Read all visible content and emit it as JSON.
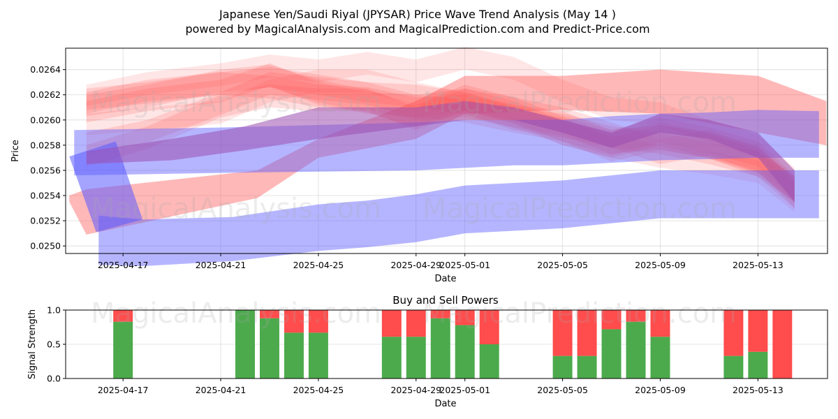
{
  "header": {
    "title_line1": "Japanese Yen/Saudi Riyal (JPYSAR) Price Wave Trend Analysis (May 14 )",
    "title_line2": "powered by MagicalAnalysis.com and MagicalPrediction.com and Predict-Price.com"
  },
  "watermarks": [
    "MagicalAnalysis.com",
    "MagicalPrediction.com"
  ],
  "colors": {
    "red_band": "#ff4d4d",
    "blue_band": "#5a5aff",
    "buy_bar": "#4caa4c",
    "sell_bar": "#ff4c4c"
  },
  "chart_data": [
    {
      "type": "area",
      "title": "",
      "xlabel": "Date",
      "ylabel": "Price",
      "ylim": [
        0.02494,
        0.02657
      ],
      "xlim_days": [
        -2.35,
        28.85
      ],
      "x_origin_date": "2025-04-17",
      "yticks": [
        0.025,
        0.0252,
        0.0254,
        0.0256,
        0.0258,
        0.026,
        0.0262,
        0.0264
      ],
      "ytick_labels": [
        "0.0250",
        "0.0252",
        "0.0254",
        "0.0256",
        "0.0258",
        "0.0260",
        "0.0262",
        "0.0264"
      ],
      "xticks_days": [
        0,
        4,
        8,
        12,
        14,
        18,
        22,
        26
      ],
      "xtick_labels": [
        "2025-04-17",
        "2025-04-21",
        "2025-04-25",
        "2025-04-29",
        "2025-05-01",
        "2025-05-05",
        "2025-05-09",
        "2025-05-13"
      ],
      "grid": true,
      "series": [
        {
          "name": "red-wave-long",
          "color": "red",
          "opacity": 0.4,
          "x": [
            -2.2,
            -1.5,
            5.5,
            8,
            12,
            14,
            18,
            22,
            26,
            28.8
          ],
          "upper": [
            0.0254,
            0.02545,
            0.0256,
            0.02585,
            0.02615,
            0.02635,
            0.02635,
            0.0264,
            0.02635,
            0.02615
          ],
          "lower": [
            0.02535,
            0.02509,
            0.02538,
            0.0257,
            0.02585,
            0.02605,
            0.02608,
            0.02605,
            0.0259,
            0.0258
          ]
        },
        {
          "name": "red-wave-1",
          "color": "red",
          "opacity": 0.18,
          "x": [
            -1.5,
            1,
            4,
            6,
            8,
            10,
            12,
            14,
            16,
            18,
            20,
            22,
            24,
            26,
            27.5
          ],
          "upper": [
            0.02625,
            0.0263,
            0.02638,
            0.02642,
            0.02636,
            0.0263,
            0.02628,
            0.02622,
            0.0261,
            0.02605,
            0.02595,
            0.0259,
            0.02582,
            0.02575,
            0.02555
          ],
          "lower": [
            0.02608,
            0.02613,
            0.0262,
            0.02626,
            0.0262,
            0.02614,
            0.0261,
            0.02605,
            0.02592,
            0.02586,
            0.02578,
            0.02573,
            0.02565,
            0.02555,
            0.02535
          ]
        },
        {
          "name": "red-wave-2",
          "color": "red",
          "opacity": 0.18,
          "x": [
            -1.5,
            1,
            4,
            6,
            8,
            10,
            12,
            14,
            16,
            18,
            20,
            22,
            24,
            26,
            27.5
          ],
          "upper": [
            0.02615,
            0.02625,
            0.02632,
            0.02645,
            0.0263,
            0.02622,
            0.0262,
            0.02625,
            0.02615,
            0.026,
            0.0259,
            0.02598,
            0.0259,
            0.0258,
            0.02552
          ],
          "lower": [
            0.02598,
            0.02607,
            0.02614,
            0.02627,
            0.02612,
            0.02605,
            0.02602,
            0.02607,
            0.02597,
            0.0258,
            0.0257,
            0.0258,
            0.0257,
            0.0256,
            0.0253
          ]
        },
        {
          "name": "red-wave-3",
          "color": "red",
          "opacity": 0.18,
          "x": [
            -1.5,
            1,
            4,
            6,
            8,
            10,
            12,
            14,
            16,
            18,
            20,
            22,
            24,
            26,
            27.5
          ],
          "upper": [
            0.0262,
            0.02628,
            0.0264,
            0.02644,
            0.02632,
            0.02624,
            0.02612,
            0.02628,
            0.02618,
            0.02603,
            0.02592,
            0.02602,
            0.02594,
            0.02583,
            0.02556
          ],
          "lower": [
            0.02603,
            0.0261,
            0.02622,
            0.02626,
            0.02614,
            0.02606,
            0.02594,
            0.02608,
            0.02598,
            0.02583,
            0.02572,
            0.02582,
            0.02574,
            0.02563,
            0.02536
          ]
        },
        {
          "name": "red-wave-4",
          "color": "red",
          "opacity": 0.18,
          "x": [
            -1.5,
            1,
            4,
            6,
            8,
            10,
            12,
            14,
            16,
            18,
            20,
            22,
            24,
            26,
            27.5
          ],
          "upper": [
            0.02622,
            0.02632,
            0.02638,
            0.02635,
            0.02628,
            0.02626,
            0.02618,
            0.0262,
            0.02612,
            0.02607,
            0.02592,
            0.02596,
            0.02588,
            0.02578,
            0.02554
          ],
          "lower": [
            0.02605,
            0.02615,
            0.0262,
            0.02617,
            0.0261,
            0.02608,
            0.026,
            0.02602,
            0.02594,
            0.02588,
            0.02573,
            0.02577,
            0.02569,
            0.02558,
            0.02534
          ]
        },
        {
          "name": "red-wave-5",
          "color": "red",
          "opacity": 0.14,
          "x": [
            -1.5,
            1,
            4,
            6,
            8,
            10,
            12,
            14,
            16,
            18,
            20,
            22,
            24,
            26,
            27.5
          ],
          "upper": [
            0.02628,
            0.02638,
            0.02645,
            0.02652,
            0.02648,
            0.02654,
            0.02648,
            0.02658,
            0.0265,
            0.02632,
            0.02618,
            0.02614,
            0.026,
            0.02588,
            0.02562
          ],
          "lower": [
            0.02611,
            0.0262,
            0.02627,
            0.02634,
            0.0263,
            0.02636,
            0.0263,
            0.0264,
            0.02632,
            0.02614,
            0.026,
            0.02596,
            0.02582,
            0.0257,
            0.02544
          ]
        },
        {
          "name": "red-wave-6",
          "color": "red",
          "opacity": 0.14,
          "x": [
            -1.5,
            1,
            4,
            6,
            8,
            10,
            12,
            14,
            16,
            18,
            20,
            22,
            24,
            26,
            27.5
          ],
          "upper": [
            0.02605,
            0.0261,
            0.02615,
            0.02632,
            0.0264,
            0.0264,
            0.0263,
            0.02622,
            0.02612,
            0.02598,
            0.02588,
            0.0258,
            0.02575,
            0.02568,
            0.02545
          ],
          "lower": [
            0.02588,
            0.02592,
            0.02597,
            0.02614,
            0.02622,
            0.02622,
            0.02612,
            0.02604,
            0.02594,
            0.0258,
            0.0257,
            0.02562,
            0.02557,
            0.0255,
            0.02527
          ]
        },
        {
          "name": "red-wave-7",
          "color": "red",
          "opacity": 0.18,
          "x": [
            -1.5,
            1,
            4,
            6,
            8,
            10,
            12,
            14,
            16,
            18,
            20,
            22,
            24,
            26,
            27.5
          ],
          "upper": [
            0.0258,
            0.02595,
            0.0262,
            0.02628,
            0.02625,
            0.02625,
            0.0261,
            0.02625,
            0.02618,
            0.0261,
            0.02598,
            0.02585,
            0.02592,
            0.02578,
            0.02555
          ],
          "lower": [
            0.02563,
            0.02577,
            0.02602,
            0.0261,
            0.02607,
            0.02607,
            0.02592,
            0.02607,
            0.026,
            0.0259,
            0.02578,
            0.02565,
            0.02572,
            0.02558,
            0.02535
          ]
        },
        {
          "name": "red-wave-8",
          "color": "red",
          "opacity": 0.18,
          "x": [
            -1.5,
            1,
            4,
            6,
            8,
            10,
            12,
            14,
            16,
            18,
            20,
            22,
            24,
            26,
            27.5
          ],
          "upper": [
            0.0259,
            0.026,
            0.02622,
            0.02638,
            0.02634,
            0.0263,
            0.0262,
            0.02616,
            0.02608,
            0.02602,
            0.02586,
            0.02596,
            0.0259,
            0.02575,
            0.0255
          ],
          "lower": [
            0.02573,
            0.02582,
            0.02604,
            0.0262,
            0.02616,
            0.02612,
            0.02602,
            0.02598,
            0.0259,
            0.02583,
            0.02567,
            0.02576,
            0.0257,
            0.02555,
            0.0253
          ]
        },
        {
          "name": "blue-wave-upper",
          "color": "blue",
          "opacity": 0.45,
          "x": [
            -2,
            4,
            8,
            12,
            14,
            16,
            18,
            20,
            22,
            24,
            26,
            28.5
          ],
          "upper": [
            0.02592,
            0.02594,
            0.02596,
            0.02598,
            0.026,
            0.026,
            0.026,
            0.02603,
            0.02605,
            0.02606,
            0.02608,
            0.02607
          ],
          "lower": [
            0.02556,
            0.02558,
            0.02559,
            0.0256,
            0.02562,
            0.02564,
            0.02564,
            0.02566,
            0.02568,
            0.02569,
            0.0257,
            0.0257
          ]
        },
        {
          "name": "blue-wave-lower",
          "color": "blue",
          "opacity": 0.45,
          "x": [
            -1,
            0.8,
            4.5,
            8,
            10,
            12,
            14,
            16,
            18,
            20,
            22,
            24,
            26,
            28.5
          ],
          "upper": [
            0.02524,
            0.02521,
            0.02523,
            0.02533,
            0.02536,
            0.02541,
            0.02548,
            0.0255,
            0.02552,
            0.02556,
            0.0256,
            0.0256,
            0.0256,
            0.0256
          ],
          "lower": [
            0.02485,
            0.02484,
            0.02488,
            0.02496,
            0.02499,
            0.02503,
            0.0251,
            0.02512,
            0.02514,
            0.02518,
            0.02522,
            0.02522,
            0.02522,
            0.02522
          ]
        },
        {
          "name": "blue-slash",
          "color": "blue",
          "opacity": 0.55,
          "x": [
            -2.2,
            -0.3,
            0.8,
            -1.1
          ],
          "upper": [
            0.02571,
            0.02583,
            0.02521,
            0.02511
          ],
          "lower": [
            0.02556,
            0.02571,
            0.02521,
            0.02511
          ],
          "polygon": true
        },
        {
          "name": "purple-wave",
          "color": "purple",
          "opacity": 0.55,
          "x": [
            -1.5,
            2,
            5,
            8,
            12,
            14,
            16,
            18,
            20,
            22,
            24,
            26,
            27.5
          ],
          "upper": [
            0.02575,
            0.02585,
            0.02595,
            0.0261,
            0.0261,
            0.02615,
            0.0261,
            0.026,
            0.0259,
            0.02605,
            0.026,
            0.0259,
            0.0256
          ],
          "lower": [
            0.02565,
            0.02568,
            0.02576,
            0.02585,
            0.02595,
            0.026,
            0.026,
            0.0259,
            0.02578,
            0.0259,
            0.02585,
            0.0257,
            0.02535
          ]
        }
      ]
    },
    {
      "type": "bar",
      "title": "Buy and Sell Powers",
      "xlabel": "Date",
      "ylabel": "Signal Strength",
      "ylim": [
        0,
        1
      ],
      "yticks": [
        0,
        0.5,
        1
      ],
      "ytick_labels": [
        "0.0",
        "0.5",
        "1.0"
      ],
      "xlim_days": [
        -2.35,
        28.85
      ],
      "x_origin_date": "2025-04-17",
      "xticks_days": [
        0,
        4,
        8,
        12,
        14,
        18,
        22,
        26
      ],
      "xtick_labels": [
        "2025-04-17",
        "2025-04-21",
        "2025-04-25",
        "2025-04-29",
        "2025-05-01",
        "2025-05-05",
        "2025-05-09",
        "2025-05-13"
      ],
      "grid": true,
      "series": [
        {
          "name": "Buy",
          "color": "green"
        },
        {
          "name": "Sell",
          "color": "red"
        }
      ],
      "bars": [
        {
          "day": 0,
          "buy": 0.83
        },
        {
          "day": 5,
          "buy": 1.0
        },
        {
          "day": 6,
          "buy": 0.88
        },
        {
          "day": 7,
          "buy": 0.67
        },
        {
          "day": 8,
          "buy": 0.67
        },
        {
          "day": 11,
          "buy": 0.61
        },
        {
          "day": 12,
          "buy": 0.61
        },
        {
          "day": 13,
          "buy": 0.88
        },
        {
          "day": 14,
          "buy": 0.78
        },
        {
          "day": 15,
          "buy": 0.5
        },
        {
          "day": 18,
          "buy": 0.33
        },
        {
          "day": 19,
          "buy": 0.33
        },
        {
          "day": 20,
          "buy": 0.72
        },
        {
          "day": 21,
          "buy": 0.83
        },
        {
          "day": 22,
          "buy": 0.61
        },
        {
          "day": 25,
          "buy": 0.33
        },
        {
          "day": 26,
          "buy": 0.39
        },
        {
          "day": 27,
          "buy": 0.0
        }
      ]
    }
  ]
}
